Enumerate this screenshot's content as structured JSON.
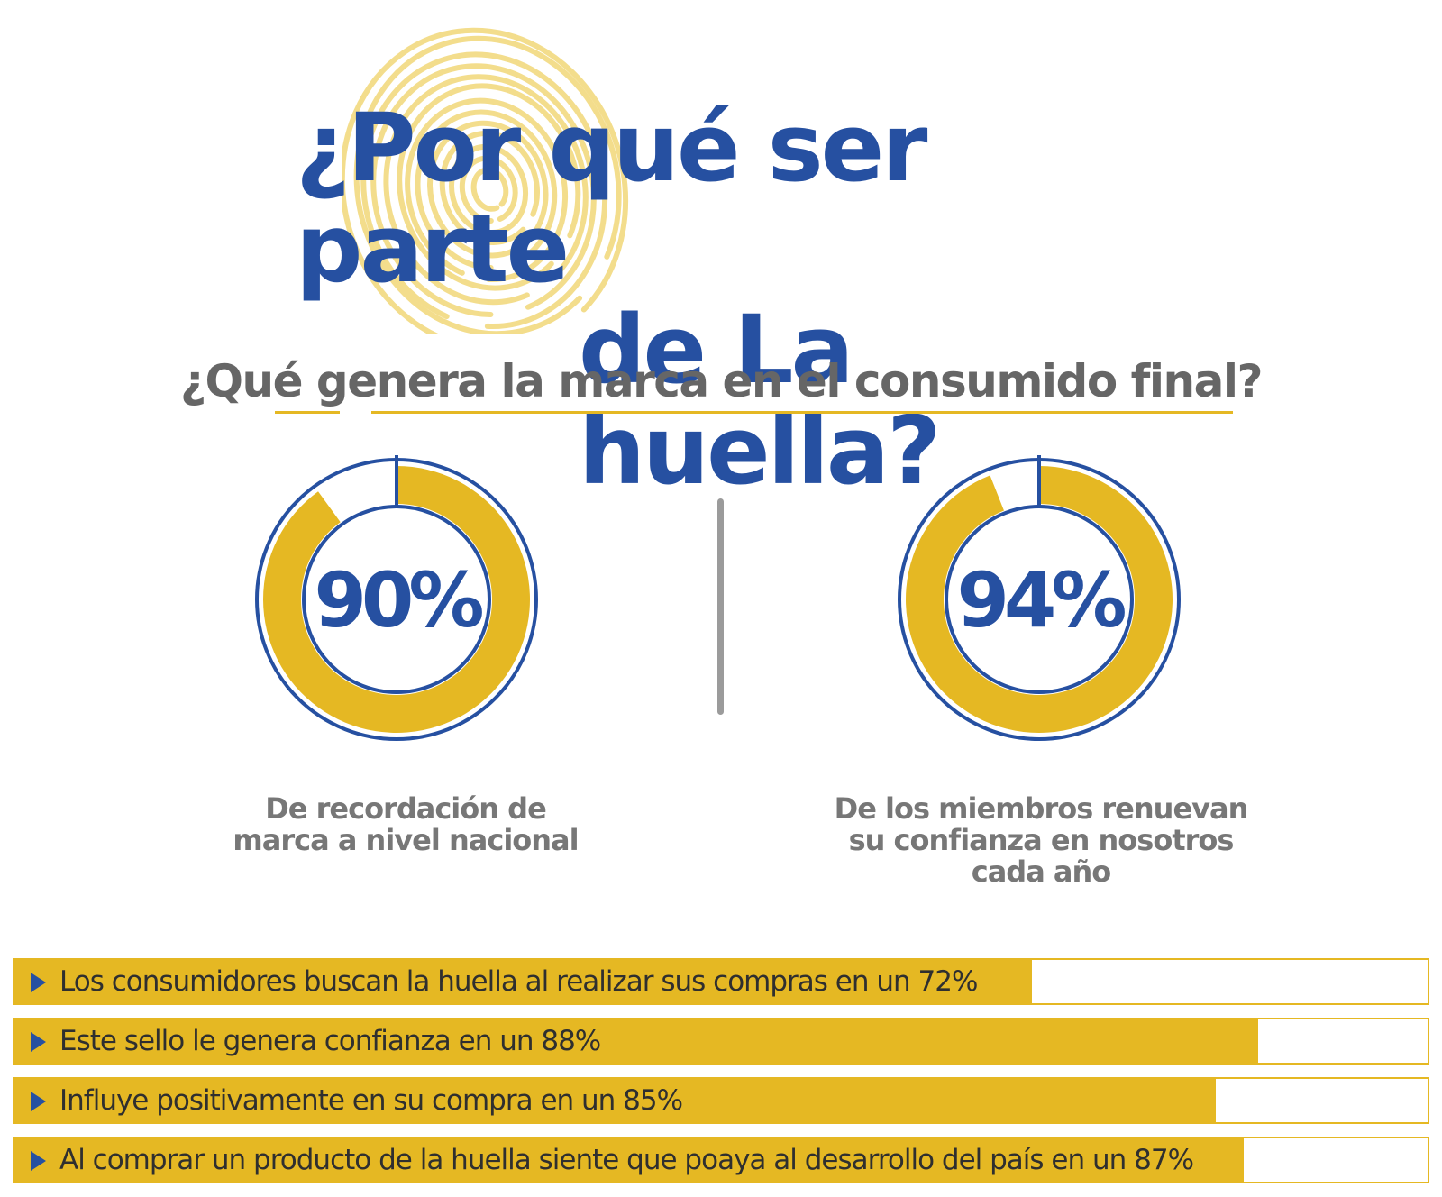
{
  "title": {
    "line1": "¿Por qué ser parte",
    "line2": "de La huella?"
  },
  "subtitle": "¿Qué genera la marca en el consumido final?",
  "colors": {
    "blue": "#2650a1",
    "yellow": "#e5b823",
    "fingerprint": "#f3dd8c",
    "gray_text": "#777777"
  },
  "icons": {
    "background": "fingerprint-icon",
    "bullet": "play-arrow-icon"
  },
  "chart_data": [
    {
      "type": "pie",
      "values": [
        90,
        10
      ],
      "center_label": "90%",
      "caption": "De recordación de marca a nivel nacional"
    },
    {
      "type": "pie",
      "values": [
        94,
        6
      ],
      "center_label": "94%",
      "caption": "De los miembros renuevan su confianza en nosotros cada año"
    },
    {
      "type": "bar",
      "orientation": "horizontal",
      "xlim": [
        0,
        100
      ],
      "categories": [
        "Los consumidores buscan la huella al realizar sus compras en un 72%",
        "Este sello le genera confianza en un 88%",
        "Influye positivamente en su compra en un 85%",
        "Al comprar un producto de la huella siente que poaya al desarrollo del país en un 87%"
      ],
      "values": [
        72,
        88,
        85,
        87
      ]
    }
  ]
}
